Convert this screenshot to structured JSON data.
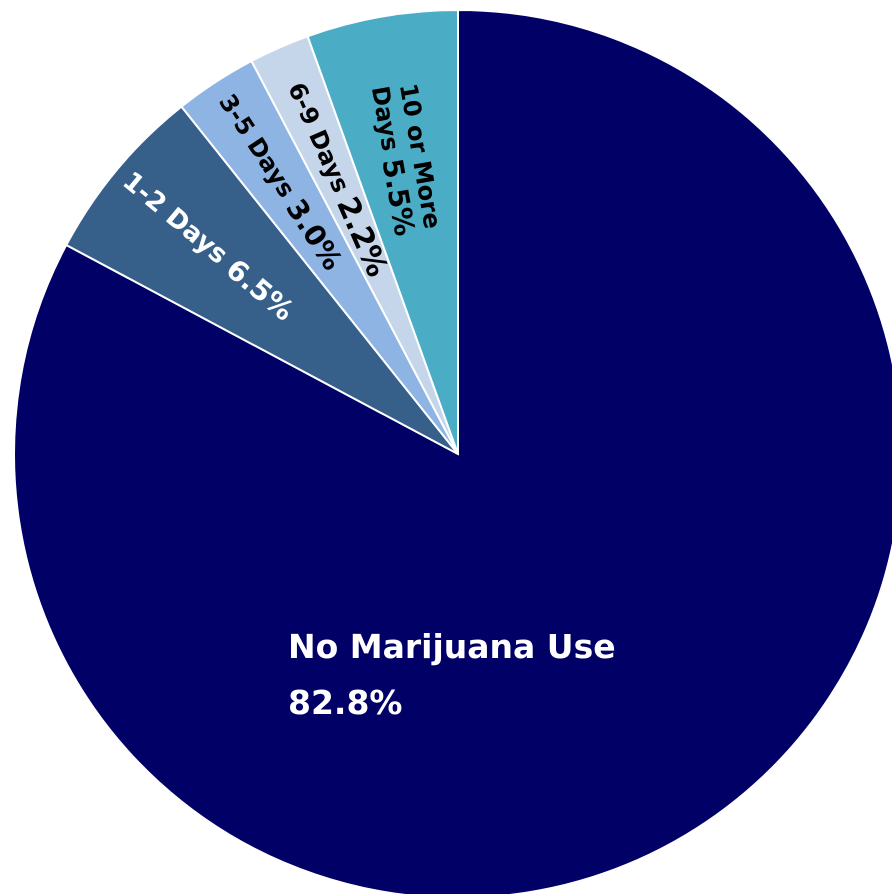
{
  "chart_data": {
    "type": "pie",
    "title": "",
    "start_angle_deg": 0,
    "direction": "clockwise",
    "slices": [
      {
        "label": "No Marijuana Use",
        "value_text": "82.8%",
        "value": 82.8,
        "color": "#000066",
        "text_color": "#ffffff"
      },
      {
        "label": "1-2 Days",
        "value_text": "6.5%",
        "value": 6.5,
        "color": "#365f8a",
        "text_color": "#ffffff"
      },
      {
        "label": "3-5 Days",
        "value_text": "3.0%",
        "value": 3.0,
        "color": "#8eb4e3",
        "text_color": "#000000"
      },
      {
        "label": "6-9 Days",
        "value_text": "2.2%",
        "value": 2.2,
        "color": "#c6d6ea",
        "text_color": "#000000"
      },
      {
        "label": "10 or More Days",
        "label_lines": [
          "10 or More",
          "Days"
        ],
        "value_text": "5.5%",
        "value": 5.5,
        "color": "#4bacc6",
        "text_color": "#000000"
      }
    ]
  }
}
